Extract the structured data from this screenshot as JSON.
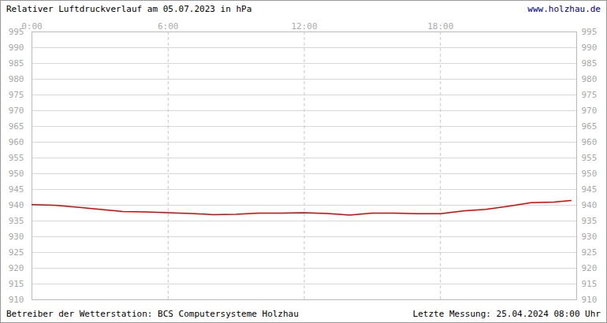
{
  "chart_data": {
    "type": "line",
    "title": "Relativer Luftdruckverlauf am 05.07.2023 in hPa",
    "annotations": [
      "www.holzhau.de",
      "Betreiber der Wetterstation: BCS Computersysteme Holzhau",
      "Letzte Messung: 25.04.2024 08:00 Uhr"
    ],
    "x": [
      0,
      1,
      2,
      3,
      4,
      5,
      6,
      7,
      8,
      9,
      10,
      11,
      12,
      13,
      14,
      15,
      16,
      17,
      18,
      19,
      20,
      21,
      22,
      23,
      23.75
    ],
    "values": [
      940.2,
      940.0,
      939.4,
      938.7,
      938.0,
      937.9,
      937.6,
      937.4,
      937.0,
      937.1,
      937.5,
      937.5,
      937.6,
      937.4,
      936.9,
      937.5,
      937.5,
      937.3,
      937.3,
      938.2,
      938.7,
      939.7,
      940.8,
      941.0,
      941.5
    ],
    "color": "#dd0000",
    "xlim": [
      0,
      24
    ],
    "xticks": [
      {
        "value": 0,
        "label": "0:00"
      },
      {
        "value": 6,
        "label": "6:00"
      },
      {
        "value": 12,
        "label": "12:00"
      },
      {
        "value": 18,
        "label": "18:00"
      }
    ],
    "ylim": [
      910,
      995
    ],
    "yticks": [
      910,
      915,
      920,
      925,
      930,
      935,
      940,
      945,
      950,
      955,
      960,
      965,
      970,
      975,
      980,
      985,
      990,
      995
    ],
    "grid": true
  }
}
